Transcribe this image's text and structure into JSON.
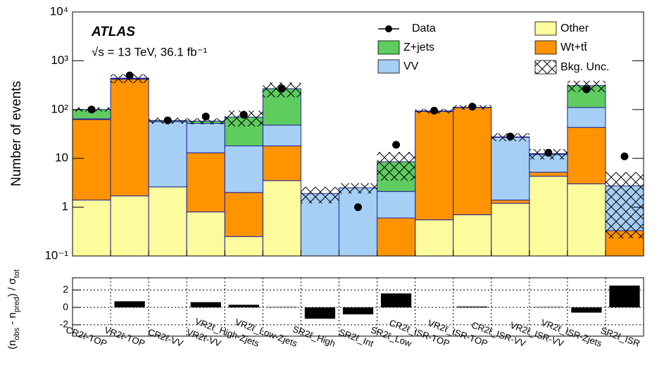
{
  "chart_data": [
    {
      "type": "stacked_bar",
      "ylabel": "Number of events",
      "atlas_label": "ATLAS",
      "energy_label": "√s = 13 TeV, 36.1 fb⁻¹",
      "log_scale": true,
      "categories": [
        "CR2ℓ-TOP",
        "VR2ℓ-TOP",
        "CR2ℓ-VV",
        "VR2ℓ-VV",
        "VR2ℓ_High-Zjets",
        "VR2ℓ_Low-Zjets",
        "SR2ℓ_High",
        "SR2ℓ_Int",
        "SR2ℓ_Low",
        "CR2ℓ_ISR-TOP",
        "VR2ℓ_ISR-TOP",
        "CR2ℓ_ISR-VV",
        "VR2ℓ_ISR-VV",
        "VR2ℓ_ISR-Zjets",
        "SR2ℓ_ISR"
      ],
      "series": [
        {
          "name": "Other",
          "color": "#fcfc9c",
          "values": [
            1.4,
            1.7,
            2.6,
            0.8,
            0.25,
            3.5,
            0,
            0,
            0,
            0.55,
            0.7,
            1.2,
            4.3,
            3.0,
            0
          ]
        },
        {
          "name": "Wt+tt̄",
          "color": "#ff9400",
          "values": [
            61,
            418,
            0,
            12.2,
            1.75,
            14.5,
            0,
            0,
            0.6,
            91,
            109,
            0.2,
            0.9,
            40,
            0.33
          ]
        },
        {
          "name": "VV",
          "color": "#a6cff5",
          "values": [
            2,
            10,
            54,
            39,
            16,
            30,
            1.9,
            2.5,
            1.5,
            1,
            1,
            25.6,
            6.8,
            67,
            2.4
          ]
        },
        {
          "name": "Z+jets",
          "color": "#5fcc60",
          "values": [
            36,
            10,
            3,
            6,
            52,
            220,
            0,
            0,
            6.4,
            1,
            1,
            0.5,
            0.5,
            200,
            0
          ]
        }
      ],
      "uncertainty": {
        "name": "Bkg. Unc.",
        "values": [
          10,
          90,
          8,
          8,
          25,
          90,
          0.7,
          0.6,
          5,
          10,
          12,
          5,
          3,
          80,
          2.5
        ]
      },
      "data": {
        "name": "Data",
        "values": [
          100,
          500,
          60,
          72,
          78,
          270,
          null,
          1.0,
          19,
          95,
          115,
          28,
          13,
          260,
          11
        ]
      },
      "ylim": [
        0.1,
        10000
      ],
      "yticks": [
        {
          "value": 0.1,
          "label": "10⁻¹"
        },
        1,
        10,
        {
          "value": 100,
          "label": "10²"
        },
        {
          "value": 1000,
          "label": "10³"
        },
        {
          "value": 10000,
          "label": "10⁴"
        }
      ]
    },
    {
      "type": "bar",
      "ylabel_parts": [
        "(n",
        "obs",
        " - n",
        "pred",
        ") / σ",
        "tot"
      ],
      "values": [
        0,
        0.7,
        0,
        0.6,
        0.3,
        0.05,
        -1.3,
        -0.8,
        1.6,
        0,
        0.1,
        0,
        0.05,
        -0.6,
        2.5
      ],
      "color": "#000000",
      "ylim": [
        -3.3,
        3.4
      ],
      "yticks": [
        -2,
        0,
        2
      ],
      "grid": true
    }
  ]
}
